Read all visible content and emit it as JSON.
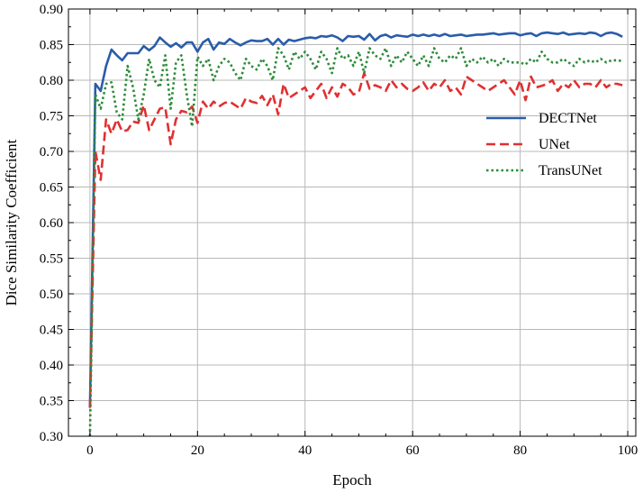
{
  "chart_data": {
    "type": "line",
    "title": "",
    "xlabel": "Epoch",
    "ylabel": "Dice Similarity Coefficient",
    "xlim": [
      -4,
      101.5
    ],
    "ylim": [
      0.3,
      0.9
    ],
    "x_ticks": [
      0,
      20,
      40,
      60,
      80,
      100
    ],
    "y_ticks": [
      0.3,
      0.35,
      0.4,
      0.45,
      0.5,
      0.55,
      0.6,
      0.65,
      0.7,
      0.75,
      0.8,
      0.85,
      0.9
    ],
    "grid": true,
    "legend_position": "right",
    "x": [
      0,
      1,
      2,
      3,
      4,
      5,
      6,
      7,
      8,
      9,
      10,
      11,
      12,
      13,
      14,
      15,
      16,
      17,
      18,
      19,
      20,
      21,
      22,
      23,
      24,
      25,
      26,
      27,
      28,
      29,
      30,
      31,
      32,
      33,
      34,
      35,
      36,
      37,
      38,
      39,
      40,
      41,
      42,
      43,
      44,
      45,
      46,
      47,
      48,
      49,
      50,
      51,
      52,
      53,
      54,
      55,
      56,
      57,
      58,
      59,
      60,
      61,
      62,
      63,
      64,
      65,
      66,
      67,
      68,
      69,
      70,
      71,
      72,
      73,
      74,
      75,
      76,
      77,
      78,
      79,
      80,
      81,
      82,
      83,
      84,
      85,
      86,
      87,
      88,
      89,
      90,
      91,
      92,
      93,
      94,
      95,
      96,
      97,
      98,
      99
    ],
    "series": [
      {
        "name": "DECTNet",
        "color": "#2a5caa",
        "dash": "solid",
        "values": [
          0.34,
          0.795,
          0.785,
          0.82,
          0.843,
          0.835,
          0.828,
          0.838,
          0.838,
          0.838,
          0.848,
          0.842,
          0.848,
          0.86,
          0.853,
          0.847,
          0.852,
          0.846,
          0.853,
          0.853,
          0.84,
          0.853,
          0.858,
          0.843,
          0.853,
          0.851,
          0.858,
          0.853,
          0.849,
          0.853,
          0.856,
          0.855,
          0.855,
          0.858,
          0.85,
          0.858,
          0.85,
          0.857,
          0.855,
          0.857,
          0.859,
          0.86,
          0.859,
          0.862,
          0.861,
          0.863,
          0.86,
          0.855,
          0.862,
          0.861,
          0.862,
          0.857,
          0.865,
          0.856,
          0.862,
          0.864,
          0.86,
          0.863,
          0.862,
          0.861,
          0.864,
          0.862,
          0.864,
          0.862,
          0.864,
          0.862,
          0.865,
          0.862,
          0.863,
          0.864,
          0.862,
          0.863,
          0.864,
          0.864,
          0.865,
          0.866,
          0.864,
          0.865,
          0.866,
          0.866,
          0.863,
          0.865,
          0.866,
          0.862,
          0.866,
          0.867,
          0.866,
          0.865,
          0.867,
          0.864,
          0.865,
          0.866,
          0.865,
          0.867,
          0.866,
          0.862,
          0.866,
          0.867,
          0.865,
          0.861
        ]
      },
      {
        "name": "UNet",
        "color": "#e03030",
        "dash": "dashed",
        "values": [
          0.34,
          0.7,
          0.66,
          0.745,
          0.725,
          0.745,
          0.728,
          0.73,
          0.742,
          0.74,
          0.765,
          0.73,
          0.745,
          0.76,
          0.762,
          0.71,
          0.745,
          0.757,
          0.755,
          0.763,
          0.74,
          0.77,
          0.76,
          0.77,
          0.763,
          0.768,
          0.77,
          0.765,
          0.76,
          0.775,
          0.77,
          0.768,
          0.778,
          0.765,
          0.78,
          0.752,
          0.795,
          0.775,
          0.78,
          0.785,
          0.79,
          0.775,
          0.785,
          0.795,
          0.775,
          0.79,
          0.777,
          0.795,
          0.79,
          0.78,
          0.783,
          0.81,
          0.788,
          0.793,
          0.79,
          0.785,
          0.8,
          0.79,
          0.795,
          0.788,
          0.785,
          0.79,
          0.797,
          0.785,
          0.795,
          0.79,
          0.8,
          0.785,
          0.79,
          0.78,
          0.805,
          0.8,
          0.795,
          0.79,
          0.785,
          0.79,
          0.795,
          0.8,
          0.79,
          0.78,
          0.8,
          0.772,
          0.805,
          0.79,
          0.792,
          0.795,
          0.8,
          0.785,
          0.795,
          0.79,
          0.8,
          0.79,
          0.795,
          0.795,
          0.79,
          0.8,
          0.79,
          0.795,
          0.795,
          0.793
        ]
      },
      {
        "name": "TransUNet",
        "color": "#2e8b3a",
        "dash": "dotted",
        "values": [
          0.3,
          0.78,
          0.76,
          0.795,
          0.797,
          0.755,
          0.745,
          0.82,
          0.79,
          0.745,
          0.78,
          0.83,
          0.8,
          0.79,
          0.835,
          0.76,
          0.825,
          0.835,
          0.78,
          0.735,
          0.833,
          0.82,
          0.83,
          0.8,
          0.82,
          0.83,
          0.825,
          0.81,
          0.8,
          0.83,
          0.82,
          0.815,
          0.83,
          0.82,
          0.8,
          0.845,
          0.835,
          0.815,
          0.84,
          0.83,
          0.84,
          0.83,
          0.815,
          0.84,
          0.83,
          0.81,
          0.845,
          0.83,
          0.835,
          0.82,
          0.84,
          0.81,
          0.845,
          0.835,
          0.83,
          0.845,
          0.82,
          0.835,
          0.825,
          0.84,
          0.83,
          0.82,
          0.835,
          0.82,
          0.845,
          0.83,
          0.825,
          0.835,
          0.83,
          0.845,
          0.82,
          0.83,
          0.825,
          0.833,
          0.825,
          0.83,
          0.82,
          0.83,
          0.825,
          0.825,
          0.825,
          0.822,
          0.83,
          0.825,
          0.84,
          0.83,
          0.825,
          0.825,
          0.83,
          0.825,
          0.82,
          0.83,
          0.825,
          0.828,
          0.825,
          0.83,
          0.825,
          0.828,
          0.828,
          0.827
        ]
      }
    ]
  }
}
